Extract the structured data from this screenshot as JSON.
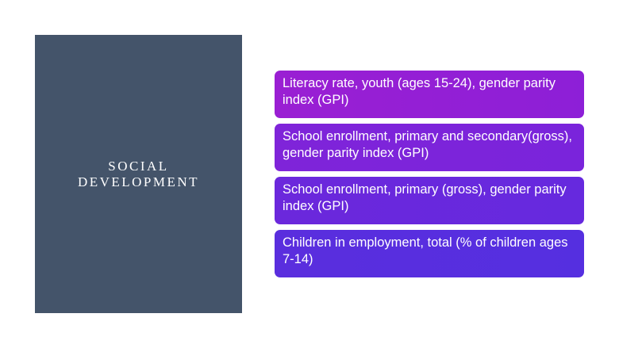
{
  "title_panel": {
    "line1": "SOCIAL",
    "line2": "DEVELOPMENT"
  },
  "cards": [
    {
      "text": "Literacy rate, youth (ages 15-24), gender parity index (GPI)"
    },
    {
      "text": "School enrollment, primary and secondary(gross), gender parity index (GPI)"
    },
    {
      "text": "School enrollment, primary (gross), gender parity index (GPI)"
    },
    {
      "text": "Children in employment, total (% of children ages 7-14)"
    }
  ],
  "colors": {
    "panel": "#44546a",
    "card1": "#9a1fd3",
    "card2": "#7f24d9",
    "card3": "#6b28dc",
    "card4": "#5a2ede"
  }
}
